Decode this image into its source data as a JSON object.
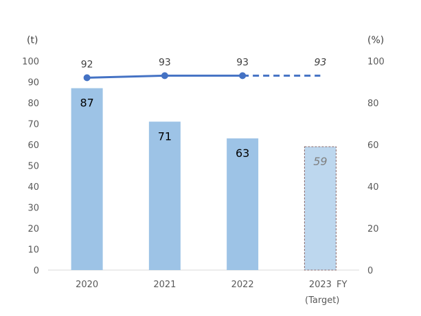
{
  "chart_data": {
    "type": "bar",
    "categories": [
      "2020",
      "2021",
      "2022",
      "2023"
    ],
    "category_note": "(Target)",
    "x_unit": "FY",
    "ylabel_left": "(t)",
    "ylabel_right": "(%)",
    "ylim_left": [
      0,
      100
    ],
    "ylim_right": [
      0,
      100
    ],
    "yticks_left": [
      0,
      10,
      20,
      30,
      40,
      50,
      60,
      70,
      80,
      90,
      100
    ],
    "yticks_right": [
      0,
      20,
      40,
      60,
      80,
      100
    ],
    "series": [
      {
        "type": "bar",
        "axis": "left",
        "values": [
          87,
          71,
          63,
          59
        ],
        "labels": [
          "87",
          "71",
          "63",
          "59"
        ],
        "target_index": 3
      },
      {
        "type": "line",
        "axis": "right",
        "values": [
          92,
          93,
          93,
          93
        ],
        "labels": [
          "92",
          "93",
          "93",
          "93"
        ],
        "target_index": 3
      }
    ],
    "grid": false,
    "colors": {
      "bar": "#9dc3e6",
      "bar_target": "#bdd7ee",
      "bar_target_border": "#8c6a6a",
      "line": "#4472c4",
      "axis": "#d9d9d9"
    }
  }
}
